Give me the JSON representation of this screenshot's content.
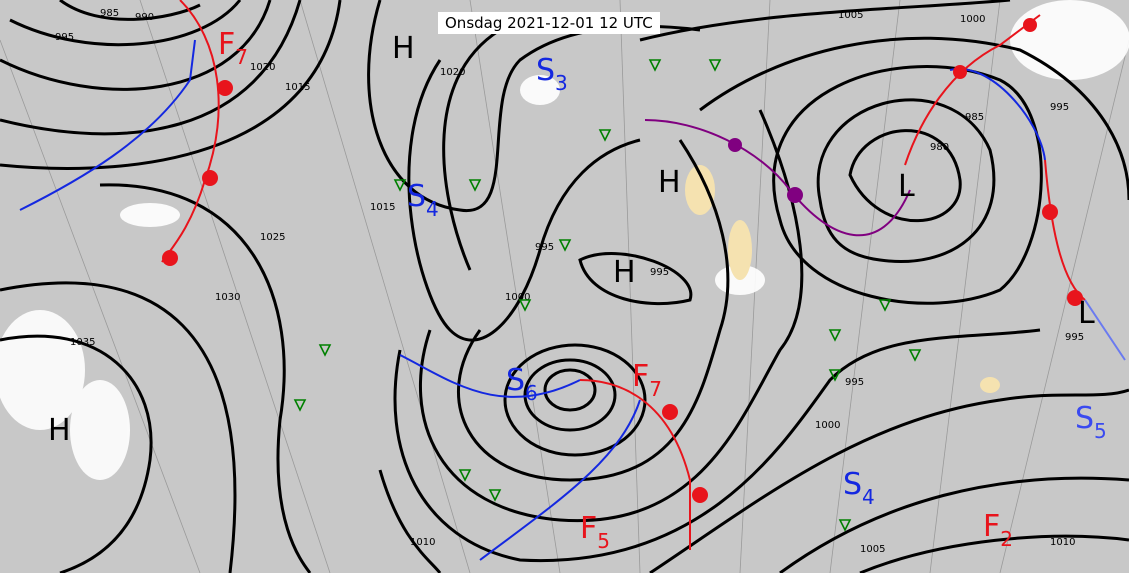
{
  "title": "Onsdag 2021-12-01 12 UTC",
  "colors": {
    "sea": "#c8c8c8",
    "cloud": "#ffffff",
    "isobar": "#000000",
    "warm_front": "#e8141c",
    "cold_front": "#1428e0",
    "occluded_front": "#800080",
    "precip": "#008000",
    "sub_blue": "#1428e0",
    "sub_red": "#e8141c"
  },
  "pressure_centers": [
    {
      "label": "H"
    },
    {
      "label": "H"
    },
    {
      "label": "H"
    },
    {
      "label": "H"
    },
    {
      "label": "L"
    },
    {
      "label": "L"
    }
  ],
  "wind_labels": [
    {
      "letter": "S",
      "sub": "3",
      "color": "blue"
    },
    {
      "letter": "S",
      "sub": "4",
      "color": "blue"
    },
    {
      "letter": "S",
      "sub": "6",
      "color": "blue"
    },
    {
      "letter": "S",
      "sub": "4",
      "color": "blue"
    },
    {
      "letter": "S",
      "sub": "5",
      "color": "blue"
    },
    {
      "letter": "F",
      "sub": "7",
      "color": "red"
    },
    {
      "letter": "F",
      "sub": "7",
      "color": "red"
    },
    {
      "letter": "F",
      "sub": "5",
      "color": "red"
    },
    {
      "letter": "F",
      "sub": "2",
      "color": "red"
    }
  ],
  "isobar_labels": [
    "985",
    "990",
    "995",
    "1015",
    "1020",
    "1025",
    "1030",
    "1035",
    "1020",
    "1015",
    "1005",
    "1000",
    "995",
    "985",
    "980",
    "995",
    "1000",
    "995",
    "1005",
    "1010",
    "1010",
    "995",
    "1000",
    "995"
  ]
}
